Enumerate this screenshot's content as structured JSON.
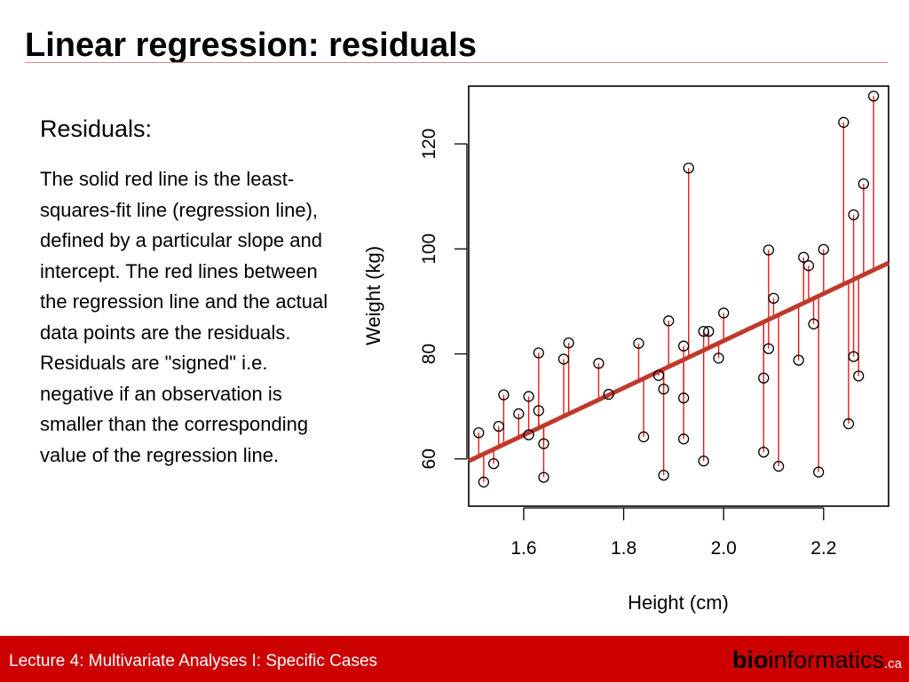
{
  "slide": {
    "title": "Linear regression: residuals",
    "subheading": "Residuals:",
    "body": "The solid red line is the least-squares-fit line (regression line), defined by a particular slope and intercept. The red lines between the regression line and the actual data points are the residuals. Residuals are \"signed\" i.e. negative if an observation is smaller than the corresponding value of the regression line."
  },
  "footer": {
    "lecture": "Lecture 4: Multivariate Analyses I: Specific Cases",
    "brand_bold": "bio",
    "brand_rest": "informatics",
    "brand_suffix": ".ca"
  },
  "colors": {
    "accent": "#cc0000",
    "regression_line": "#c0392b",
    "residual": "#e41a1c"
  },
  "chart_data": {
    "type": "scatter",
    "title": "",
    "xlabel": "Height (cm)",
    "ylabel": "Weight (kg)",
    "xlim": [
      1.49,
      2.33
    ],
    "ylim": [
      51,
      131
    ],
    "xticks": [
      1.6,
      1.8,
      2.0,
      2.2
    ],
    "yticks": [
      60,
      80,
      100,
      120
    ],
    "xtick_labels": [
      "1.6",
      "1.8",
      "2.0",
      "2.2"
    ],
    "ytick_labels": [
      "60",
      "80",
      "100",
      "120"
    ],
    "grid": false,
    "regression": {
      "slope": 44.9,
      "intercept": -7.3
    },
    "points": [
      [
        1.51,
        65.0
      ],
      [
        1.52,
        55.6
      ],
      [
        1.54,
        59.1
      ],
      [
        1.55,
        66.2
      ],
      [
        1.56,
        72.2
      ],
      [
        1.59,
        68.6
      ],
      [
        1.61,
        71.9
      ],
      [
        1.61,
        64.6
      ],
      [
        1.63,
        80.2
      ],
      [
        1.63,
        69.2
      ],
      [
        1.64,
        62.9
      ],
      [
        1.64,
        56.5
      ],
      [
        1.68,
        79.0
      ],
      [
        1.69,
        82.1
      ],
      [
        1.75,
        78.2
      ],
      [
        1.77,
        72.3
      ],
      [
        1.83,
        82.0
      ],
      [
        1.84,
        64.2
      ],
      [
        1.87,
        75.9
      ],
      [
        1.88,
        73.3
      ],
      [
        1.88,
        56.9
      ],
      [
        1.89,
        86.3
      ],
      [
        1.92,
        81.5
      ],
      [
        1.92,
        71.6
      ],
      [
        1.92,
        63.8
      ],
      [
        1.93,
        115.4
      ],
      [
        1.96,
        84.3
      ],
      [
        1.96,
        59.6
      ],
      [
        1.97,
        84.3
      ],
      [
        1.99,
        79.2
      ],
      [
        2.0,
        87.8
      ],
      [
        2.08,
        75.4
      ],
      [
        2.08,
        61.3
      ],
      [
        2.09,
        99.8
      ],
      [
        2.09,
        81.0
      ],
      [
        2.1,
        90.6
      ],
      [
        2.11,
        58.6
      ],
      [
        2.15,
        78.8
      ],
      [
        2.16,
        98.4
      ],
      [
        2.17,
        96.8
      ],
      [
        2.18,
        85.7
      ],
      [
        2.19,
        57.5
      ],
      [
        2.2,
        99.9
      ],
      [
        2.24,
        124.1
      ],
      [
        2.25,
        66.7
      ],
      [
        2.26,
        106.5
      ],
      [
        2.26,
        79.5
      ],
      [
        2.27,
        75.8
      ],
      [
        2.28,
        112.4
      ],
      [
        2.3,
        129.1
      ]
    ]
  }
}
